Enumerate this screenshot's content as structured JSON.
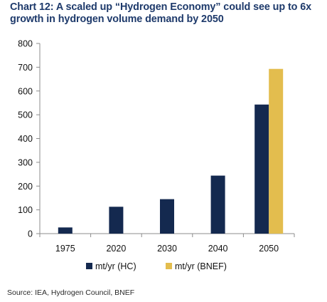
{
  "header": {
    "title": "Chart 12: A scaled up “Hydrogen Economy” could  see up to 6x growth in hydrogen volume demand by 2050"
  },
  "footer": {
    "source": "Source: IEA, Hydrogen Council, BNEF"
  },
  "chart_data": {
    "type": "bar",
    "title": "Chart 12: A scaled up “Hydrogen Economy” could  see up to 6x growth in hydrogen volume demand by 2050",
    "xlabel": "",
    "ylabel": "",
    "categories": [
      "1975",
      "2020",
      "2030",
      "2040",
      "2050"
    ],
    "series": [
      {
        "name": "mt/yr (HC)",
        "color": "#14294f",
        "values": [
          26,
          113,
          145,
          244,
          543
        ]
      },
      {
        "name": "mt/yr (BNEF)",
        "color": "#e3bd4e",
        "values": [
          null,
          null,
          null,
          null,
          693
        ]
      }
    ],
    "ylim": [
      0,
      800
    ],
    "yticks": [
      0,
      100,
      200,
      300,
      400,
      500,
      600,
      700,
      800
    ],
    "grid": false,
    "legend_position": "bottom"
  }
}
